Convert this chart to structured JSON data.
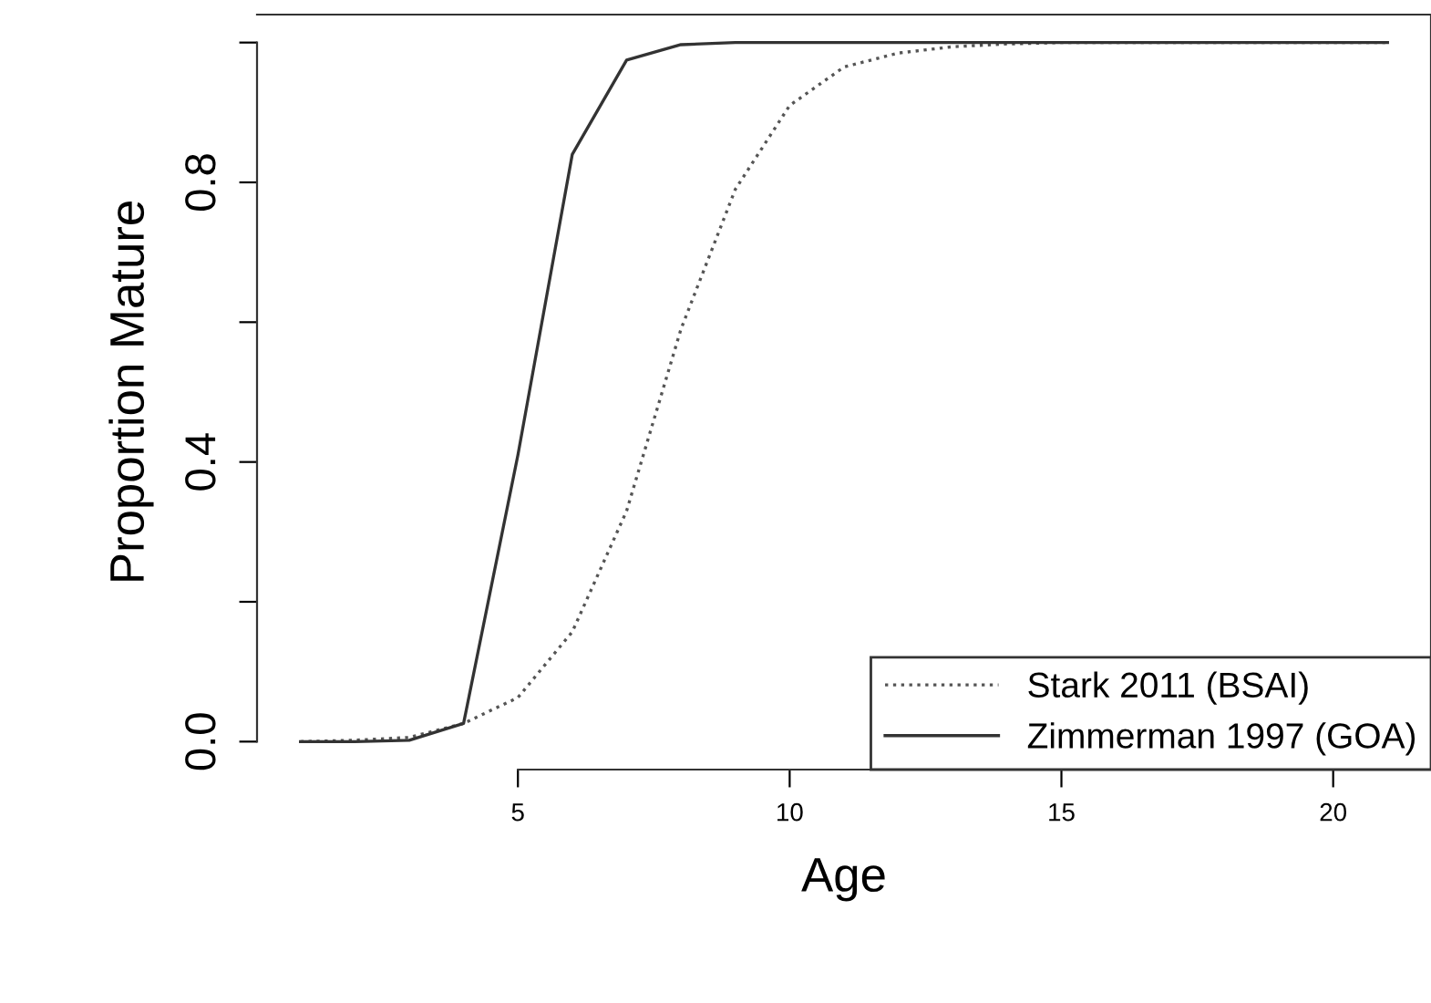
{
  "chart_data": {
    "type": "line",
    "xlabel": "Age",
    "ylabel": "Proportion Mature",
    "xlim": [
      0.2,
      21.8
    ],
    "ylim": [
      -0.04,
      1.04
    ],
    "xticks": [
      5,
      10,
      15,
      20
    ],
    "yticks": [
      {
        "value": 0.0,
        "label": "0.0"
      },
      {
        "value": 0.2,
        "label": null
      },
      {
        "value": 0.4,
        "label": "0.4"
      },
      {
        "value": 0.6,
        "label": null
      },
      {
        "value": 0.8,
        "label": "0.8"
      },
      {
        "value": 1.0,
        "label": null
      }
    ],
    "x": [
      1,
      2,
      3,
      4,
      5,
      6,
      7,
      8,
      9,
      10,
      11,
      12,
      13,
      14,
      15,
      16,
      17,
      18,
      19,
      20,
      21
    ],
    "series": [
      {
        "name": "Stark 2011 (BSAI)",
        "color": "#555555",
        "line_style": "dotted",
        "values": [
          0.0,
          0.002,
          0.006,
          0.026,
          0.063,
          0.157,
          0.33,
          0.59,
          0.79,
          0.91,
          0.965,
          0.985,
          0.994,
          0.998,
          1.0,
          1.0,
          1.0,
          1.0,
          1.0,
          1.0,
          1.0
        ]
      },
      {
        "name": "Zimmerman 1997 (GOA)",
        "color": "#333333",
        "line_style": "solid",
        "values": [
          0.0,
          0.0,
          0.002,
          0.026,
          0.41,
          0.84,
          0.975,
          0.997,
          1.0,
          1.0,
          1.0,
          1.0,
          1.0,
          1.0,
          1.0,
          1.0,
          1.0,
          1.0,
          1.0,
          1.0,
          1.0
        ]
      }
    ],
    "legend": "bottom right",
    "grid": false,
    "marker": "none"
  }
}
